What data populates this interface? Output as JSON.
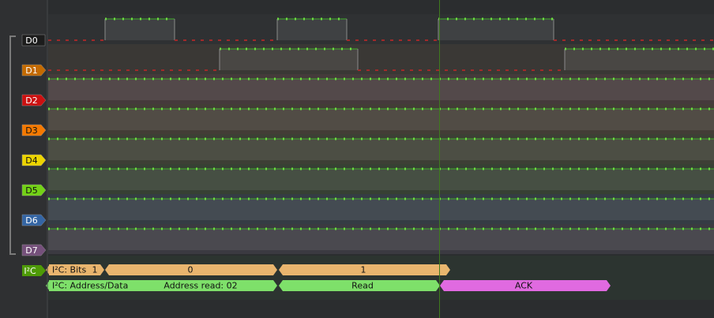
{
  "channels": [
    {
      "label": "D0"
    },
    {
      "label": "D1"
    },
    {
      "label": "D2"
    },
    {
      "label": "D3"
    },
    {
      "label": "D4"
    },
    {
      "label": "D5"
    },
    {
      "label": "D6"
    },
    {
      "label": "D7"
    }
  ],
  "decoder": {
    "label": "I²C",
    "rows": [
      {
        "label": "I²C: Bits",
        "annotations": [
          "1",
          "0",
          "1"
        ]
      },
      {
        "label": "I²C: Address/Data",
        "annotations": [
          "Address read: 02",
          "Read",
          "ACK"
        ]
      }
    ]
  }
}
